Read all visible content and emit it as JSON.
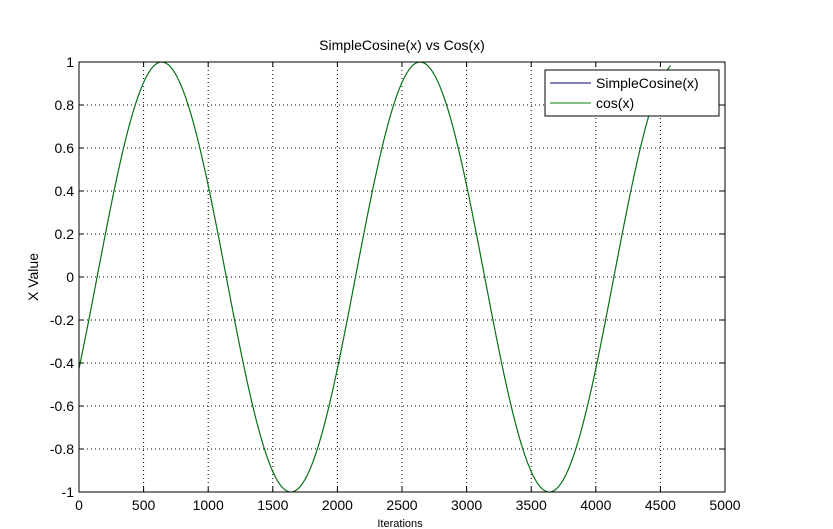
{
  "chart_data": {
    "type": "line",
    "title": "SimpleCosine(x) vs Cos(x)",
    "xlabel": "Iterations",
    "ylabel": "X Value",
    "xlim": [
      0,
      5000
    ],
    "ylim": [
      -1,
      1
    ],
    "xticks": [
      0,
      500,
      1000,
      1500,
      2000,
      2500,
      3000,
      3500,
      4000,
      4500,
      5000
    ],
    "xtick_labels": [
      "0",
      "500",
      "1000",
      "1500",
      "2000",
      "2500",
      "3000",
      "3500",
      "4000",
      "4500",
      "5000"
    ],
    "yticks": [
      -1,
      -0.8,
      -0.6,
      -0.4,
      -0.2,
      0,
      0.2,
      0.4,
      0.6,
      0.8,
      1
    ],
    "ytick_labels": [
      "-1",
      "-0.8",
      "-0.6",
      "-0.4",
      "-0.2",
      "0",
      "0.2",
      "0.4",
      "0.6",
      "0.8",
      "1"
    ],
    "grid": true,
    "legend_position": "top-right",
    "series": [
      {
        "name": "SimpleCosine(x)",
        "color": "#000080",
        "function": "cos",
        "amplitude": 1,
        "period": 2000,
        "peak_at": 640,
        "x_range": [
          0,
          4580
        ]
      },
      {
        "name": "cos(x)",
        "color": "#008000",
        "function": "cos",
        "amplitude": 1,
        "period": 2000,
        "peak_at": 640,
        "x_range": [
          0,
          4580
        ]
      }
    ]
  }
}
